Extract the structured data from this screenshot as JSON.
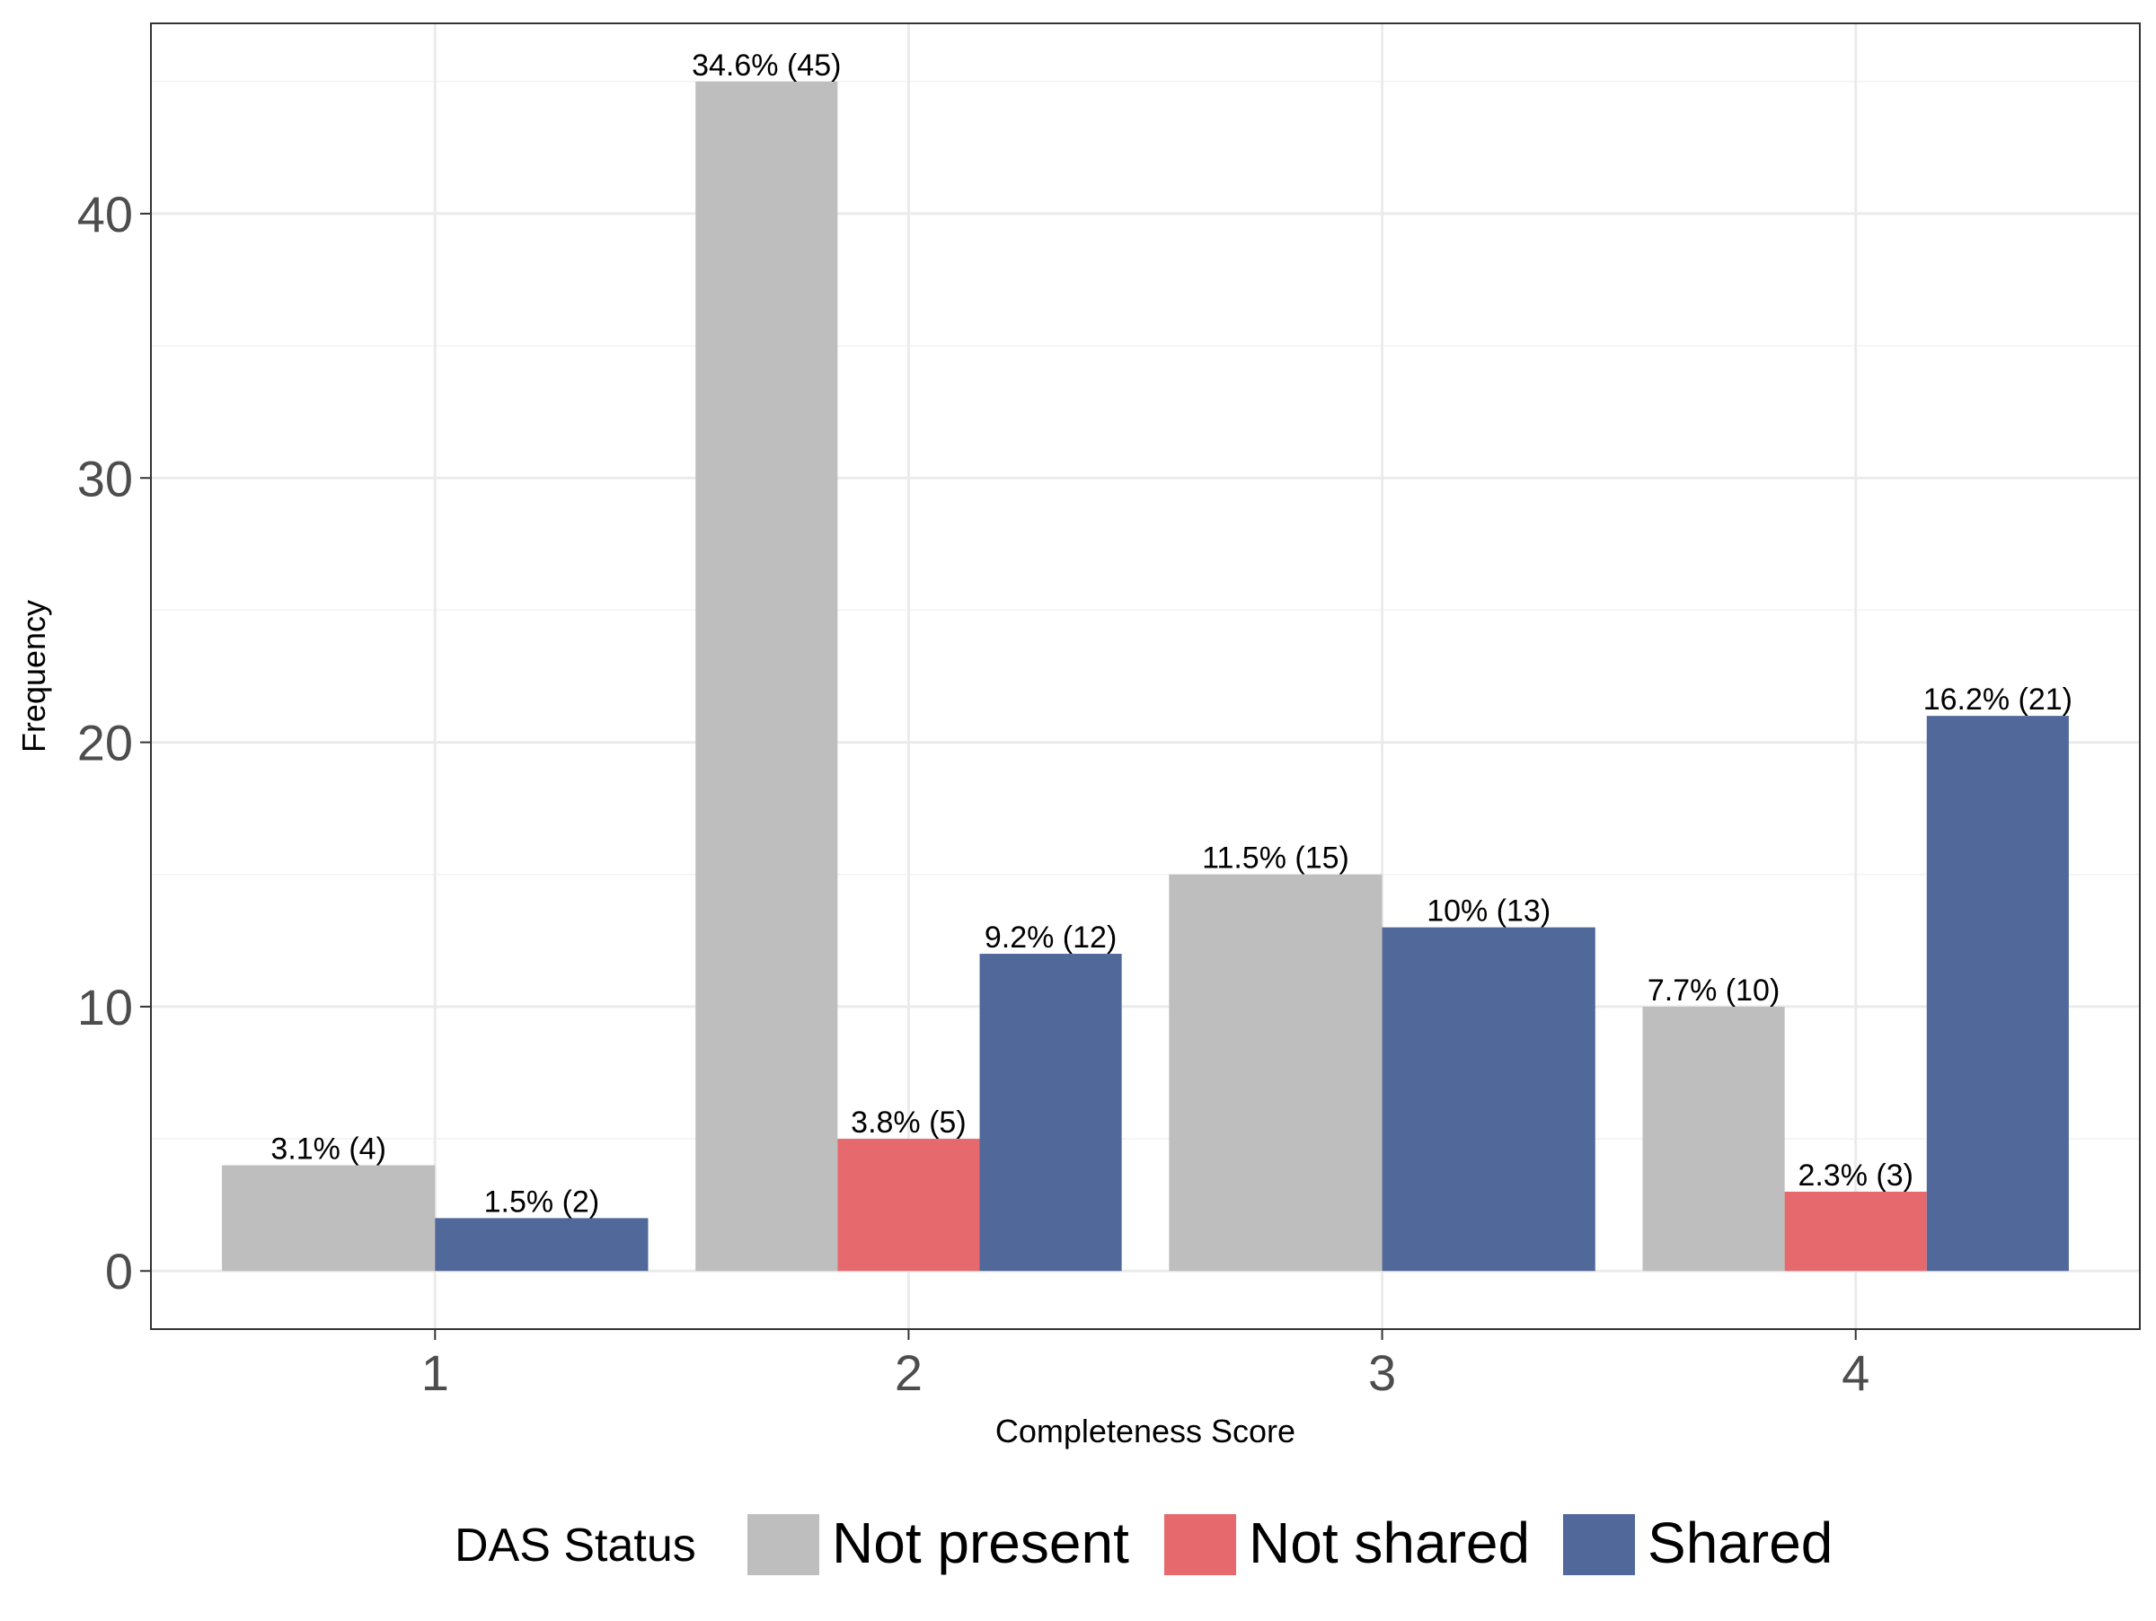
{
  "chart_data": {
    "type": "bar",
    "title": "",
    "xlabel": "Completeness Score",
    "ylabel": "Frequency",
    "categories": [
      "1",
      "2",
      "3",
      "4"
    ],
    "y_ticks": [
      "0",
      "10",
      "20",
      "30",
      "40"
    ],
    "ylim": [
      -2.2,
      47.2
    ],
    "grid": true,
    "legend": {
      "title": "DAS Status",
      "position": "bottom"
    },
    "series": [
      {
        "name": "Not present",
        "color": "#BEBEBE",
        "values": [
          4,
          45,
          15,
          10
        ],
        "labels": [
          "3.1% (4)",
          "34.6% (45)",
          "11.5% (15)",
          "7.7% (10)"
        ]
      },
      {
        "name": "Not shared",
        "color": "#E6696E",
        "values": [
          null,
          5,
          null,
          3
        ],
        "labels": [
          "",
          "3.8% (5)",
          "",
          "2.3% (3)"
        ]
      },
      {
        "name": "Shared",
        "color": "#51689B",
        "values": [
          2,
          12,
          13,
          21
        ],
        "labels": [
          "1.5% (2)",
          "9.2% (12)",
          "10% (13)",
          "16.2% (21)"
        ]
      }
    ]
  }
}
